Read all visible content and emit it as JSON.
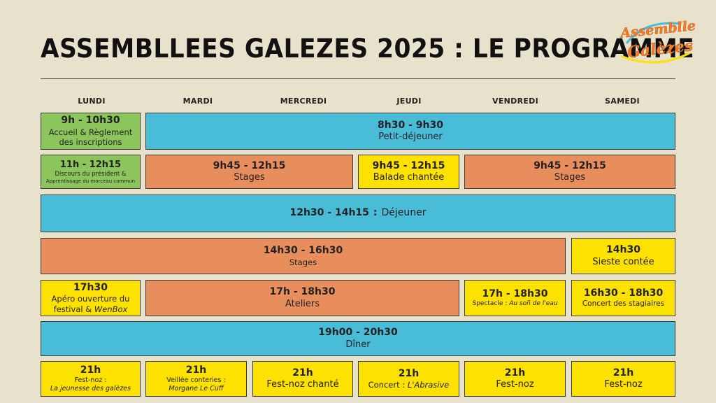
{
  "header": {
    "title": "ASSEMBLLEES GALEZES 2025 : LE PROGRAMME",
    "logo_line1": "Assembllees",
    "logo_line2": "Galèzes"
  },
  "days": [
    "LUNDI",
    "MARDI",
    "MERCREDI",
    "JEUDI",
    "VENDREDI",
    "SAMEDI"
  ],
  "colors": {
    "green": "#8cc55b",
    "blue": "#49bcd8",
    "orange": "#e88e5d",
    "yellow": "#fde100",
    "background": "#e8e2cc"
  },
  "row1": {
    "accueil": {
      "time": "9h - 10h30",
      "line1": "Accueil & Règlement",
      "line2": "des inscriptions"
    },
    "petit_dej": {
      "time": "8h30 - 9h30",
      "label": "Petit-déjeuner"
    }
  },
  "row2": {
    "discours": {
      "time": "11h - 12h15",
      "line1": "Discours du président &",
      "line2": "Apprentissage du morceau commun"
    },
    "stages_a": {
      "time": "9h45 - 12h15",
      "label": "Stages"
    },
    "balade": {
      "time": "9h45 - 12h15",
      "label": "Balade chantée"
    },
    "stages_b": {
      "time": "9h45 - 12h15",
      "label": "Stages"
    }
  },
  "row3": {
    "time": "12h30 - 14h15",
    "sep": ":",
    "label": "Déjeuner"
  },
  "row4": {
    "stages": {
      "time": "14h30 - 16h30",
      "label": "Stages"
    },
    "sieste": {
      "time": "14h30",
      "label": "Sieste contée"
    }
  },
  "row5": {
    "apero": {
      "time": "17h30",
      "line1": "Apéro ouverture du",
      "line2_plain": "festival & ",
      "line2_italic": "WenBox"
    },
    "ateliers": {
      "time": "17h - 18h30",
      "label": "Ateliers"
    },
    "spectacle": {
      "time": "17h - 18h30",
      "label_plain": "Spectacle : ",
      "label_italic": "Au soñ de l'eau"
    },
    "concert_stagiaires": {
      "time": "16h30 - 18h30",
      "label": "Concert des stagiaires"
    }
  },
  "row6": {
    "time": "19h00 - 20h30",
    "label": "Dîner"
  },
  "row7": {
    "lundi": {
      "time": "21h",
      "line1": "Fest-noz :",
      "line2": "La jeunesse des galèzes"
    },
    "mardi": {
      "time": "21h",
      "line1": "Veillée conteries :",
      "line2": "Morgane Le Cuff"
    },
    "mercredi": {
      "time": "21h",
      "label": "Fest-noz chanté"
    },
    "jeudi": {
      "time": "21h",
      "label_plain": "Concert : ",
      "label_italic": "L'Abrasive"
    },
    "vendredi": {
      "time": "21h",
      "label": "Fest-noz"
    },
    "samedi": {
      "time": "21h",
      "label": "Fest-noz"
    }
  }
}
